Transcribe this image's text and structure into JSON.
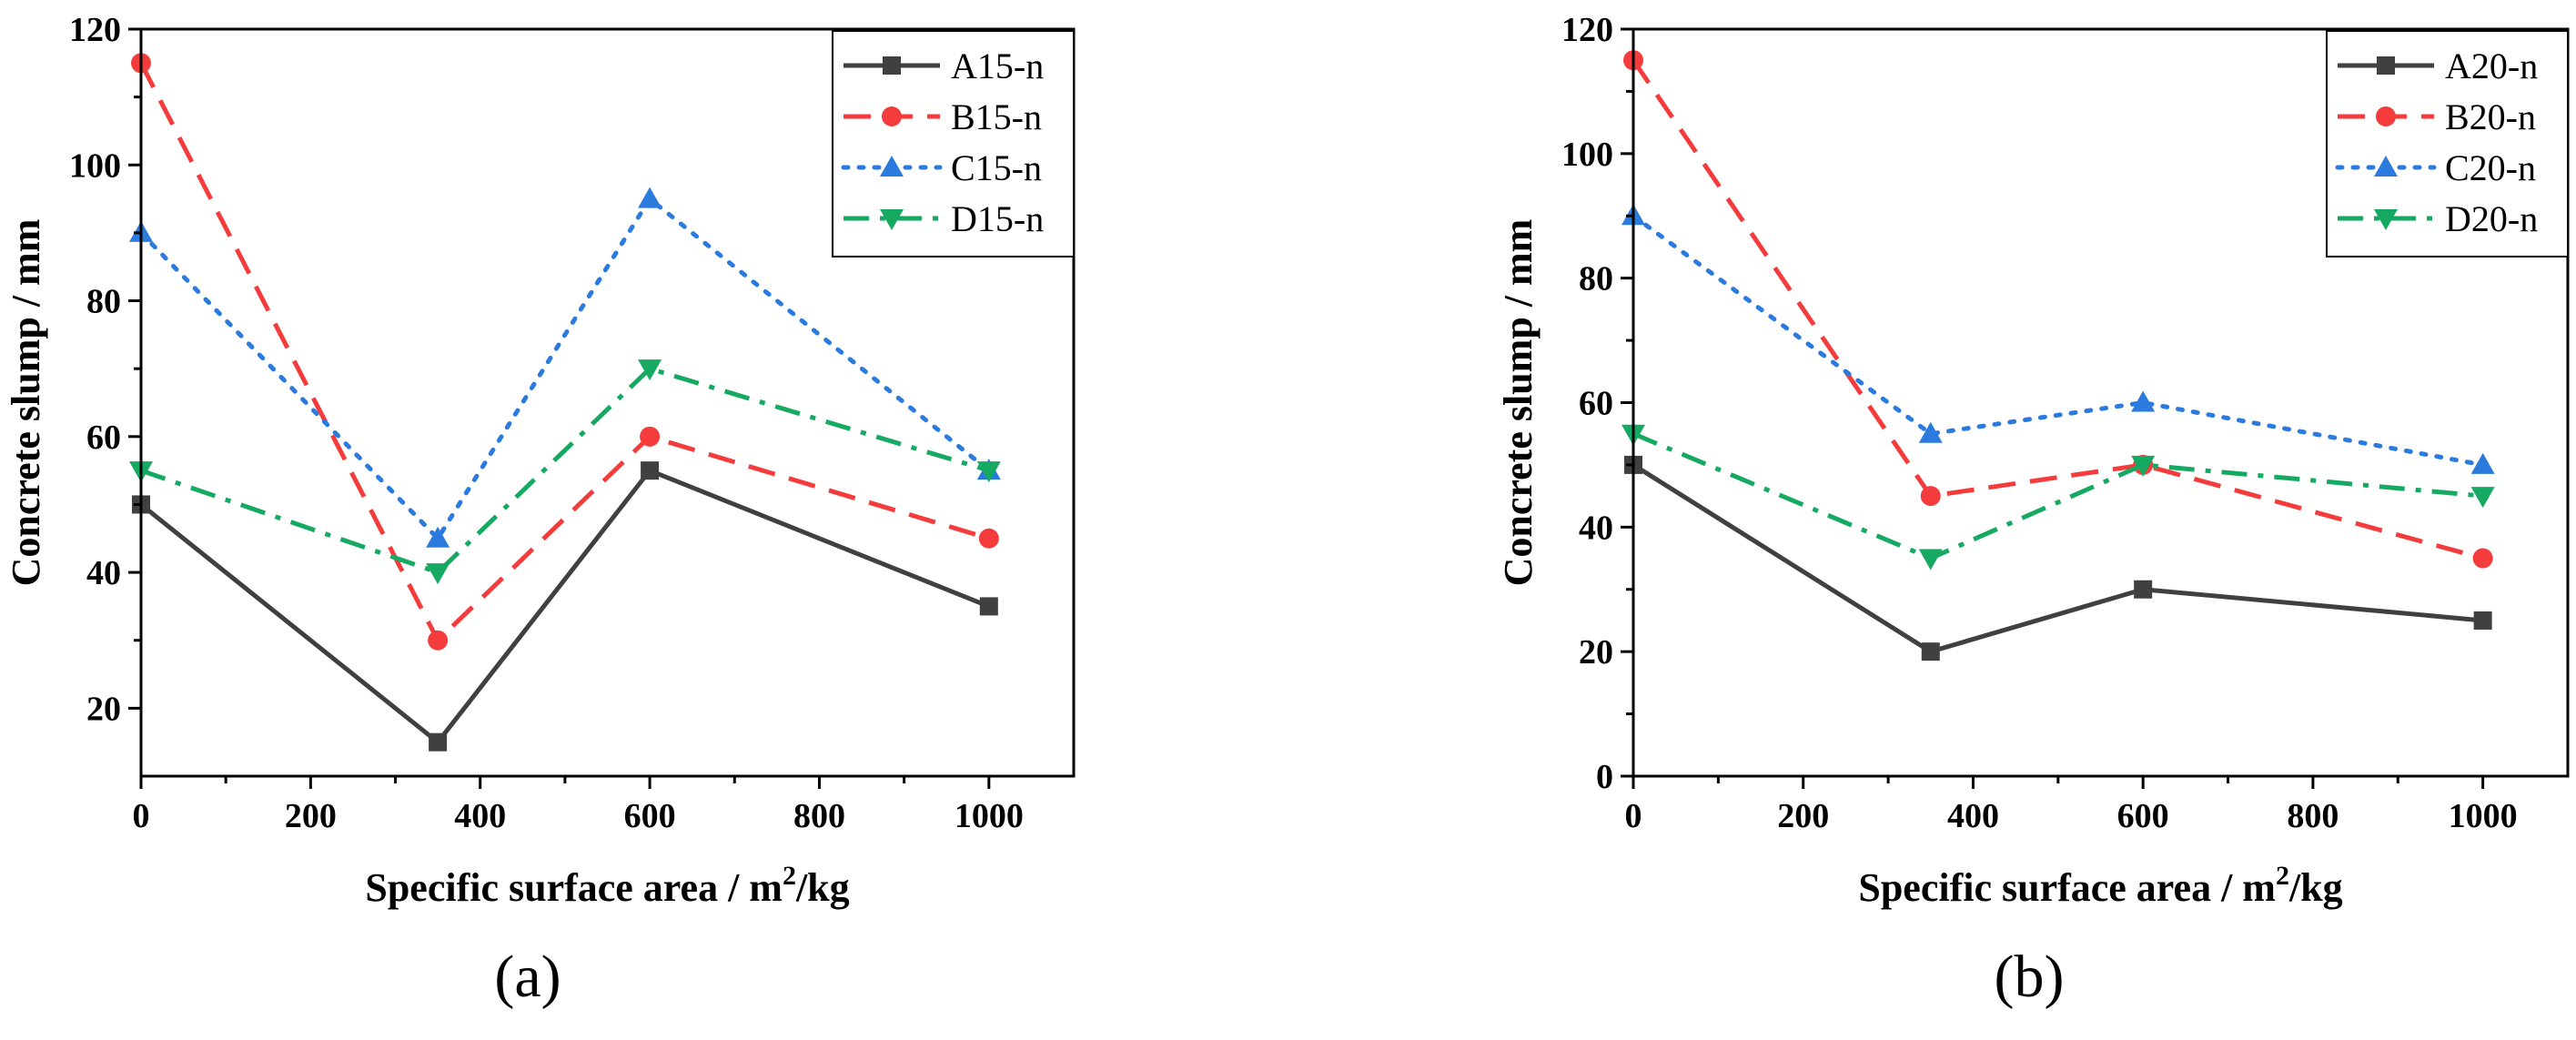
{
  "chart_data": [
    {
      "type": "line",
      "panel_label": "(a)",
      "xlabel_main": "Specific surface area / m",
      "xlabel_sup": "2",
      "xlabel_tail": "/kg",
      "ylabel": "Concrete slump / mm",
      "xlim": [
        0,
        1100
      ],
      "ylim": [
        10,
        120
      ],
      "xticks": [
        0,
        200,
        400,
        600,
        800,
        1000
      ],
      "yticks": [
        20,
        40,
        60,
        80,
        100,
        120
      ],
      "x": [
        0,
        350,
        600,
        1000
      ],
      "legend_position": "top-right",
      "series": [
        {
          "name": "A15-n",
          "values": [
            50,
            15,
            55,
            35
          ],
          "color": "#404040",
          "style": "solid",
          "marker": "square"
        },
        {
          "name": "B15-n",
          "values": [
            115,
            30,
            60,
            45
          ],
          "color": "#f53c3c",
          "style": "dashed",
          "marker": "circle"
        },
        {
          "name": "C15-n",
          "values": [
            90,
            45,
            95,
            55
          ],
          "color": "#2b7bdf",
          "style": "dotted",
          "marker": "triangle-up"
        },
        {
          "name": "D15-n",
          "values": [
            55,
            40,
            70,
            55
          ],
          "color": "#16a962",
          "style": "dashdot",
          "marker": "triangle-down"
        }
      ]
    },
    {
      "type": "line",
      "panel_label": "(b)",
      "xlabel_main": "Specific surface area / m",
      "xlabel_sup": "2",
      "xlabel_tail": "/kg",
      "ylabel": "Concrete slump / mm",
      "xlim": [
        0,
        1100
      ],
      "ylim": [
        0,
        120
      ],
      "xticks": [
        0,
        200,
        400,
        600,
        800,
        1000
      ],
      "yticks": [
        0,
        20,
        40,
        60,
        80,
        100,
        120
      ],
      "x": [
        0,
        350,
        600,
        1000
      ],
      "legend_position": "top-right",
      "series": [
        {
          "name": "A20-n",
          "values": [
            50,
            20,
            30,
            25
          ],
          "color": "#404040",
          "style": "solid",
          "marker": "square"
        },
        {
          "name": "B20-n",
          "values": [
            115,
            45,
            50,
            35
          ],
          "color": "#f53c3c",
          "style": "dashed",
          "marker": "circle"
        },
        {
          "name": "C20-n",
          "values": [
            90,
            55,
            60,
            50
          ],
          "color": "#2b7bdf",
          "style": "dotted",
          "marker": "triangle-up"
        },
        {
          "name": "D20-n",
          "values": [
            55,
            35,
            50,
            45
          ],
          "color": "#16a962",
          "style": "dashdot",
          "marker": "triangle-down"
        }
      ]
    }
  ]
}
